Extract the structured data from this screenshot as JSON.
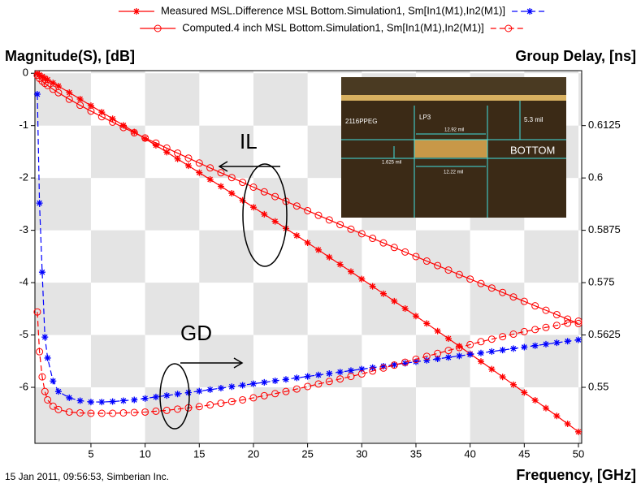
{
  "chart_data": {
    "type": "line",
    "y_label": "Magnitude(S), [dB]",
    "y2_label": "Group Delay, [ns]",
    "x_label": "Frequency, [GHz]",
    "footer": "15 Jan 2011, 09:56:53, Simberian Inc.",
    "annotations": [
      "IL",
      "GD"
    ],
    "inset_labels": [
      "2116PPEG",
      "LP3",
      "12.92 mil",
      "5.3 mil",
      "BOTTOM",
      "1.625 mil",
      "12.22 mil"
    ],
    "checkerboard": true,
    "xlim": [
      -0.17,
      50.3
    ],
    "xticks": [
      5,
      10,
      15,
      20,
      25,
      30,
      35,
      40,
      45,
      50
    ],
    "ylim": [
      -7.07,
      0.05
    ],
    "yticks": [
      0,
      -1,
      -2,
      -3,
      -4,
      -5,
      -6
    ],
    "y2lim": [
      0.536625,
      0.625625
    ],
    "y2ticks": [
      0.6125,
      0.6,
      0.5875,
      0.575,
      0.5625,
      0.55
    ],
    "x": [
      0.05,
      0.25,
      0.5,
      0.75,
      1,
      1.5,
      2,
      3,
      4,
      5,
      6,
      7,
      8,
      9,
      10,
      11,
      12,
      13,
      14,
      15,
      16,
      17,
      18,
      19,
      20,
      21,
      22,
      23,
      24,
      25,
      26,
      27,
      28,
      29,
      30,
      31,
      32,
      33,
      34,
      35,
      36,
      37,
      38,
      39,
      40,
      41,
      42,
      43,
      44,
      45,
      46,
      47,
      48,
      49,
      50
    ],
    "series": [
      {
        "name": "Measured MSL.Difference MSL Bottom.Simulation1, Sm[In1(M1),In2(M1)]",
        "color": "#ff0000",
        "marker": "star",
        "dashed": false,
        "values": [
          -0.006,
          -0.031,
          -0.061,
          -0.092,
          -0.122,
          -0.184,
          -0.245,
          -0.369,
          -0.493,
          -0.618,
          -0.743,
          -0.869,
          -0.995,
          -1.122,
          -1.25,
          -1.378,
          -1.507,
          -1.637,
          -1.767,
          -1.898,
          -2.029,
          -2.161,
          -2.293,
          -2.426,
          -2.56,
          -2.694,
          -2.829,
          -2.965,
          -3.101,
          -3.238,
          -3.375,
          -3.513,
          -3.651,
          -3.79,
          -3.93,
          -4.07,
          -4.211,
          -4.353,
          -4.495,
          -4.638,
          -4.781,
          -4.925,
          -5.069,
          -5.214,
          -5.36,
          -5.506,
          -5.653,
          -5.801,
          -5.949,
          -6.098,
          -6.247,
          -6.397,
          -6.547,
          -6.698,
          -6.85
        ]
      },
      {
        "name": "Computed.4 inch MSL Bottom.Simulation1, Sm[In1(M1),In2(M1)]",
        "color": "#ff0000",
        "marker": "circle",
        "dashed": false,
        "values": [
          -0.04,
          -0.098,
          -0.15,
          -0.193,
          -0.233,
          -0.305,
          -0.372,
          -0.496,
          -0.612,
          -0.723,
          -0.83,
          -0.934,
          -1.037,
          -1.137,
          -1.236,
          -1.334,
          -1.43,
          -1.526,
          -1.621,
          -1.715,
          -1.808,
          -1.901,
          -1.993,
          -2.084,
          -2.176,
          -2.266,
          -2.356,
          -2.446,
          -2.536,
          -2.625,
          -2.714,
          -2.802,
          -2.891,
          -2.979,
          -3.066,
          -3.154,
          -3.241,
          -3.328,
          -3.415,
          -3.502,
          -3.588,
          -3.674,
          -3.76,
          -3.846,
          -3.932,
          -4.017,
          -4.103,
          -4.188,
          -4.273,
          -4.358,
          -4.443,
          -4.528,
          -4.612,
          -4.697,
          -4.781
        ]
      },
      {
        "color": "#0000ff",
        "marker": "star",
        "dashed": true,
        "axis": "y2",
        "values": [
          0.62,
          0.594,
          0.5775,
          0.562,
          0.557,
          0.5515,
          0.549,
          0.5475,
          0.5468,
          0.5465,
          0.5465,
          0.5466,
          0.5468,
          0.547,
          0.54735,
          0.5477,
          0.54805,
          0.5484,
          0.54875,
          0.5491,
          0.54945,
          0.5498,
          0.55015,
          0.5505,
          0.55085,
          0.5512,
          0.55155,
          0.5519,
          0.55225,
          0.5526,
          0.55295,
          0.5533,
          0.55365,
          0.554,
          0.55435,
          0.5547,
          0.55505,
          0.5554,
          0.55575,
          0.5561,
          0.55645,
          0.5568,
          0.55715,
          0.5575,
          0.55785,
          0.5582,
          0.55855,
          0.5589,
          0.55925,
          0.5596,
          0.55995,
          0.5603,
          0.56065,
          0.561,
          0.56135
        ]
      },
      {
        "color": "#ff0000",
        "marker": "circle",
        "dashed": true,
        "axis": "y2",
        "values": [
          0.568,
          0.5585,
          0.5525,
          0.549,
          0.547,
          0.5455,
          0.5447,
          0.5441,
          0.5439,
          0.5438,
          0.5438,
          0.5438,
          0.5439,
          0.544,
          0.5441,
          0.5443,
          0.5445,
          0.5448,
          0.5451,
          0.5454,
          0.5458,
          0.5462,
          0.5466,
          0.547,
          0.5475,
          0.548,
          0.5485,
          0.549,
          0.5496,
          0.5502,
          0.5508,
          0.5514,
          0.552,
          0.5526,
          0.5532,
          0.5539,
          0.5546,
          0.5553,
          0.556,
          0.5567,
          0.5574,
          0.5581,
          0.5588,
          0.5595,
          0.5602,
          0.5609,
          0.5615,
          0.5621,
          0.5627,
          0.5633,
          0.5638,
          0.5643,
          0.5648,
          0.5653,
          0.5658
        ]
      }
    ]
  }
}
